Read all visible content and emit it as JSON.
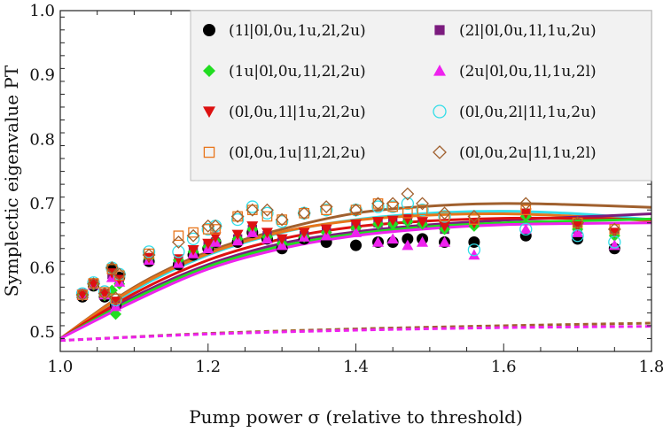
{
  "chart_data": {
    "type": "scatter",
    "xlabel": "Pump power σ (relative to threshold)",
    "ylabel": "Symplectic eigenvalue PT",
    "xlim": [
      1.0,
      1.8
    ],
    "ylim": [
      0.47,
      1.0
    ],
    "xticks": [
      "1.0",
      "1.2",
      "1.4",
      "1.6",
      "1.8"
    ],
    "yticks": [
      "0.5",
      "0.6",
      "0.7",
      "0.8",
      "0.9",
      "1.0"
    ],
    "xtick_values": [
      1.0,
      1.2,
      1.4,
      1.6,
      1.8
    ],
    "ytick_values": [
      0.5,
      0.6,
      0.7,
      0.8,
      0.9,
      1.0
    ],
    "legend_position": "top-right",
    "x": [
      1.03,
      1.045,
      1.06,
      1.07,
      1.075,
      1.08,
      1.12,
      1.16,
      1.18,
      1.2,
      1.21,
      1.24,
      1.26,
      1.28,
      1.3,
      1.33,
      1.36,
      1.4,
      1.43,
      1.45,
      1.47,
      1.49,
      1.52,
      1.56,
      1.63,
      1.7,
      1.75
    ],
    "series": [
      {
        "name": "(1l|0l,0u,1u,2l,2u)",
        "marker": "circle-filled",
        "color": "#000000",
        "values": [
          0.555,
          0.572,
          0.555,
          0.598,
          0.542,
          0.585,
          0.61,
          0.605,
          0.62,
          0.63,
          0.64,
          0.64,
          0.655,
          0.645,
          0.63,
          0.645,
          0.64,
          0.635,
          0.64,
          0.64,
          0.645,
          0.645,
          0.64,
          0.64,
          0.65,
          0.645,
          0.63
        ]
      },
      {
        "name": "(2l|0l,0u,1l,1u,2u)",
        "marker": "square-filled",
        "color": "#7b1b7e",
        "values": [
          0.56,
          0.575,
          0.56,
          0.59,
          0.545,
          0.58,
          0.615,
          0.61,
          0.625,
          0.635,
          0.64,
          0.645,
          0.66,
          0.65,
          0.64,
          0.65,
          0.66,
          0.665,
          0.67,
          0.67,
          0.675,
          0.67,
          0.66,
          0.67,
          0.685,
          0.66,
          0.655
        ]
      },
      {
        "name": "(1u|0l,0u,1l,2l,2u)",
        "marker": "diamond-filled",
        "color": "#22dd22",
        "values": [
          0.558,
          0.573,
          0.557,
          0.565,
          0.528,
          0.575,
          0.615,
          0.612,
          0.625,
          0.633,
          0.642,
          0.645,
          0.66,
          0.648,
          0.638,
          0.648,
          0.655,
          0.662,
          0.668,
          0.668,
          0.672,
          0.668,
          0.66,
          0.665,
          0.68,
          0.66,
          0.65
        ]
      },
      {
        "name": "(2u|0l,0u,1l,1u,2l)",
        "marker": "triangle-up-filled",
        "color": "#ee22ee",
        "values": [
          0.557,
          0.574,
          0.558,
          0.585,
          0.54,
          0.578,
          0.612,
          0.607,
          0.622,
          0.63,
          0.64,
          0.642,
          0.655,
          0.645,
          0.635,
          0.648,
          0.65,
          0.655,
          0.64,
          0.645,
          0.635,
          0.64,
          0.64,
          0.62,
          0.66,
          0.655,
          0.635
        ]
      },
      {
        "name": "(0l,0u,1l|1u,2l,2u)",
        "marker": "triangle-down-filled",
        "color": "#dd1111",
        "values": [
          0.559,
          0.575,
          0.56,
          0.592,
          0.548,
          0.582,
          0.616,
          0.614,
          0.628,
          0.638,
          0.648,
          0.652,
          0.665,
          0.655,
          0.645,
          0.655,
          0.66,
          0.668,
          0.672,
          0.674,
          0.676,
          0.672,
          0.665,
          0.67,
          0.685,
          0.665,
          0.655
        ]
      },
      {
        "name": "(0l,0u,2l|1l,1u,2u)",
        "marker": "circle-open",
        "color": "#33dde8",
        "values": [
          0.56,
          0.577,
          0.563,
          0.6,
          0.55,
          0.59,
          0.625,
          0.625,
          0.645,
          0.66,
          0.665,
          0.675,
          0.695,
          0.685,
          0.672,
          0.685,
          0.69,
          0.69,
          0.695,
          0.695,
          0.7,
          0.69,
          0.68,
          0.628,
          0.66,
          0.65,
          0.64
        ]
      },
      {
        "name": "(0l,0u,1u|1l,2l,2u)",
        "marker": "square-open",
        "color": "#e8751a",
        "values": [
          0.558,
          0.576,
          0.562,
          0.598,
          0.552,
          0.588,
          0.622,
          0.65,
          0.655,
          0.66,
          0.66,
          0.68,
          0.69,
          0.68,
          0.675,
          0.685,
          0.69,
          0.69,
          0.7,
          0.695,
          0.685,
          0.69,
          0.68,
          0.675,
          0.69,
          0.67,
          0.66
        ]
      },
      {
        "name": "(0l,0u,2u|1l,1u,2l)",
        "marker": "diamond-open",
        "color": "#a0602e",
        "values": [
          0.558,
          0.575,
          0.56,
          0.6,
          0.553,
          0.59,
          0.62,
          0.64,
          0.65,
          0.665,
          0.665,
          0.68,
          0.69,
          0.69,
          0.675,
          0.685,
          0.695,
          0.69,
          0.7,
          0.7,
          0.715,
          0.7,
          0.685,
          0.68,
          0.7,
          0.67,
          0.66
        ]
      }
    ],
    "fit_curves": [
      {
        "color": "#a0602e",
        "x": [
          1.0,
          1.1,
          1.2,
          1.3,
          1.4,
          1.5,
          1.6,
          1.7,
          1.8
        ],
        "values": [
          0.49,
          0.57,
          0.625,
          0.66,
          0.685,
          0.696,
          0.7,
          0.698,
          0.694
        ]
      },
      {
        "color": "#33dde8",
        "x": [
          1.0,
          1.1,
          1.2,
          1.3,
          1.4,
          1.5,
          1.6,
          1.7,
          1.8
        ],
        "values": [
          0.49,
          0.565,
          0.62,
          0.655,
          0.675,
          0.685,
          0.688,
          0.684,
          0.675
        ]
      },
      {
        "color": "#e8751a",
        "x": [
          1.0,
          1.1,
          1.2,
          1.3,
          1.4,
          1.5,
          1.6,
          1.7,
          1.8
        ],
        "values": [
          0.49,
          0.568,
          0.622,
          0.656,
          0.674,
          0.682,
          0.684,
          0.68,
          0.673
        ]
      },
      {
        "color": "#7b1b7e",
        "x": [
          1.0,
          1.1,
          1.2,
          1.3,
          1.4,
          1.5,
          1.6,
          1.7,
          1.8
        ],
        "values": [
          0.49,
          0.555,
          0.605,
          0.638,
          0.656,
          0.667,
          0.674,
          0.679,
          0.684
        ]
      },
      {
        "color": "#dd1111",
        "x": [
          1.0,
          1.1,
          1.2,
          1.3,
          1.4,
          1.5,
          1.6,
          1.7,
          1.8
        ],
        "values": [
          0.49,
          0.56,
          0.612,
          0.645,
          0.664,
          0.673,
          0.677,
          0.677,
          0.675
        ]
      },
      {
        "color": "#22dd22",
        "x": [
          1.0,
          1.1,
          1.2,
          1.3,
          1.4,
          1.5,
          1.6,
          1.7,
          1.8
        ],
        "values": [
          0.49,
          0.552,
          0.602,
          0.634,
          0.653,
          0.664,
          0.67,
          0.673,
          0.676
        ]
      },
      {
        "color": "#ee22ee",
        "x": [
          1.0,
          1.1,
          1.2,
          1.3,
          1.4,
          1.5,
          1.6,
          1.7,
          1.8
        ],
        "values": [
          0.49,
          0.548,
          0.598,
          0.63,
          0.65,
          0.661,
          0.667,
          0.669,
          0.67
        ]
      }
    ],
    "dashed_baselines": [
      {
        "color": "#a0602e",
        "x": [
          1.0,
          1.2,
          1.4,
          1.6,
          1.8
        ],
        "values": [
          0.487,
          0.498,
          0.505,
          0.51,
          0.514
        ]
      },
      {
        "color": "#ee22ee",
        "x": [
          1.0,
          1.2,
          1.4,
          1.6,
          1.8
        ],
        "values": [
          0.487,
          0.497,
          0.503,
          0.507,
          0.509
        ]
      }
    ]
  }
}
